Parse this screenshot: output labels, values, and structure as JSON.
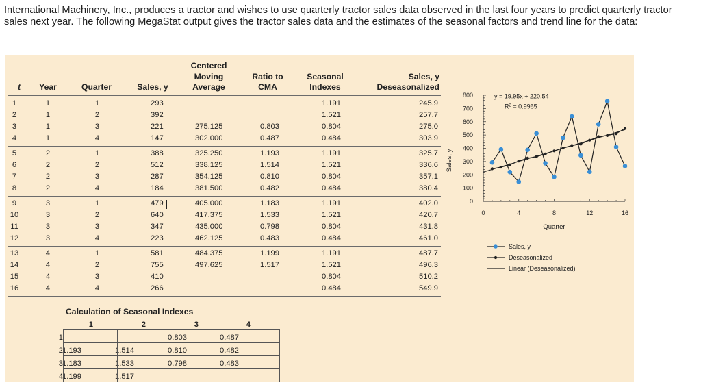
{
  "intro_text": "International Machinery, Inc., produces a tractor and wishes to use quarterly tractor sales data observed in the last four years to predict quarterly tractor sales next year. The following MegaStat output gives the tractor sales data and the estimates of the seasonal factors and trend line for the data:",
  "table": {
    "headers": {
      "t": "t",
      "year": "Year",
      "quarter": "Quarter",
      "sales": "Sales, y",
      "cma_1": "Centered",
      "cma_2": "Moving",
      "cma_3": "Average",
      "ratio_1": "Ratio to",
      "ratio_2": "CMA",
      "seasonal_1": "Seasonal",
      "seasonal_2": "Indexes",
      "deseason_1": "Sales, y",
      "deseason_2": "Deseasonalized"
    },
    "rows": [
      {
        "t": "1",
        "year": "1",
        "quarter": "1",
        "sales": "293",
        "cma": "",
        "ratio": "",
        "seasonal": "1.191",
        "deseason": "245.9"
      },
      {
        "t": "2",
        "year": "1",
        "quarter": "2",
        "sales": "392",
        "cma": "",
        "ratio": "",
        "seasonal": "1.521",
        "deseason": "257.7"
      },
      {
        "t": "3",
        "year": "1",
        "quarter": "3",
        "sales": "221",
        "cma": "275.125",
        "ratio": "0.803",
        "seasonal": "0.804",
        "deseason": "275.0"
      },
      {
        "t": "4",
        "year": "1",
        "quarter": "4",
        "sales": "147",
        "cma": "302.000",
        "ratio": "0.487",
        "seasonal": "0.484",
        "deseason": "303.9"
      },
      {
        "t": "5",
        "year": "2",
        "quarter": "1",
        "sales": "388",
        "cma": "325.250",
        "ratio": "1.193",
        "seasonal": "1.191",
        "deseason": "325.7"
      },
      {
        "t": "6",
        "year": "2",
        "quarter": "2",
        "sales": "512",
        "cma": "338.125",
        "ratio": "1.514",
        "seasonal": "1.521",
        "deseason": "336.6"
      },
      {
        "t": "7",
        "year": "2",
        "quarter": "3",
        "sales": "287",
        "cma": "354.125",
        "ratio": "0.810",
        "seasonal": "0.804",
        "deseason": "357.1"
      },
      {
        "t": "8",
        "year": "2",
        "quarter": "4",
        "sales": "184",
        "cma": "381.500",
        "ratio": "0.482",
        "seasonal": "0.484",
        "deseason": "380.4"
      },
      {
        "t": "9",
        "year": "3",
        "quarter": "1",
        "sales": "479",
        "cma": "405.000",
        "ratio": "1.183",
        "seasonal": "1.191",
        "deseason": "402.0"
      },
      {
        "t": "10",
        "year": "3",
        "quarter": "2",
        "sales": "640",
        "cma": "417.375",
        "ratio": "1.533",
        "seasonal": "1.521",
        "deseason": "420.7"
      },
      {
        "t": "11",
        "year": "3",
        "quarter": "3",
        "sales": "347",
        "cma": "435.000",
        "ratio": "0.798",
        "seasonal": "0.804",
        "deseason": "431.8"
      },
      {
        "t": "12",
        "year": "3",
        "quarter": "4",
        "sales": "223",
        "cma": "462.125",
        "ratio": "0.483",
        "seasonal": "0.484",
        "deseason": "461.0"
      },
      {
        "t": "13",
        "year": "4",
        "quarter": "1",
        "sales": "581",
        "cma": "484.375",
        "ratio": "1.199",
        "seasonal": "1.191",
        "deseason": "487.7"
      },
      {
        "t": "14",
        "year": "4",
        "quarter": "2",
        "sales": "755",
        "cma": "497.625",
        "ratio": "1.517",
        "seasonal": "1.521",
        "deseason": "496.3"
      },
      {
        "t": "15",
        "year": "4",
        "quarter": "3",
        "sales": "410",
        "cma": "",
        "ratio": "",
        "seasonal": "0.804",
        "deseason": "510.2"
      },
      {
        "t": "16",
        "year": "4",
        "quarter": "4",
        "sales": "266",
        "cma": "",
        "ratio": "",
        "seasonal": "0.484",
        "deseason": "549.9"
      }
    ]
  },
  "seasonal_calc": {
    "title": "Calculation of Seasonal Indexes",
    "col_headers": [
      "1",
      "2",
      "3",
      "4"
    ],
    "row_labels": [
      "1",
      "2",
      "3",
      "4"
    ],
    "cells": [
      [
        "",
        "",
        "0.803",
        "0.487"
      ],
      [
        "1.193",
        "1.514",
        "0.810",
        "0.482"
      ],
      [
        "1.183",
        "1.533",
        "0.798",
        "0.483"
      ],
      [
        "1.199",
        "1.517",
        "",
        ""
      ]
    ]
  },
  "chart_data": {
    "type": "line",
    "xlabel": "Quarter",
    "ylabel": "Sales, y",
    "xlim": [
      0,
      16
    ],
    "ylim": [
      0,
      800
    ],
    "xticks": [
      0,
      4,
      8,
      12,
      16
    ],
    "yticks": [
      0,
      100,
      200,
      300,
      400,
      500,
      600,
      700,
      800
    ],
    "equation": "y = 19.95x + 220.54",
    "r2_prefix": "R",
    "r2_exp": "2",
    "r2_suffix": " = 0.9965",
    "trend": {
      "slope": 19.95,
      "intercept": 220.54
    },
    "series": [
      {
        "name": "Sales, y",
        "color": "#3a8fd6",
        "x": [
          1,
          2,
          3,
          4,
          5,
          6,
          7,
          8,
          9,
          10,
          11,
          12,
          13,
          14,
          15,
          16
        ],
        "values": [
          293,
          392,
          221,
          147,
          388,
          512,
          287,
          184,
          479,
          640,
          347,
          223,
          581,
          755,
          410,
          266
        ]
      },
      {
        "name": "Deseasonalized",
        "color": "#222222",
        "x": [
          1,
          2,
          3,
          4,
          5,
          6,
          7,
          8,
          9,
          10,
          11,
          12,
          13,
          14,
          15,
          16
        ],
        "values": [
          245.9,
          257.7,
          275.0,
          303.9,
          325.7,
          336.6,
          357.1,
          380.4,
          402.0,
          420.7,
          431.8,
          461.0,
          487.7,
          496.3,
          510.2,
          549.9
        ]
      },
      {
        "name": "Linear (Deseasonalized)",
        "color": "#222222"
      }
    ]
  }
}
